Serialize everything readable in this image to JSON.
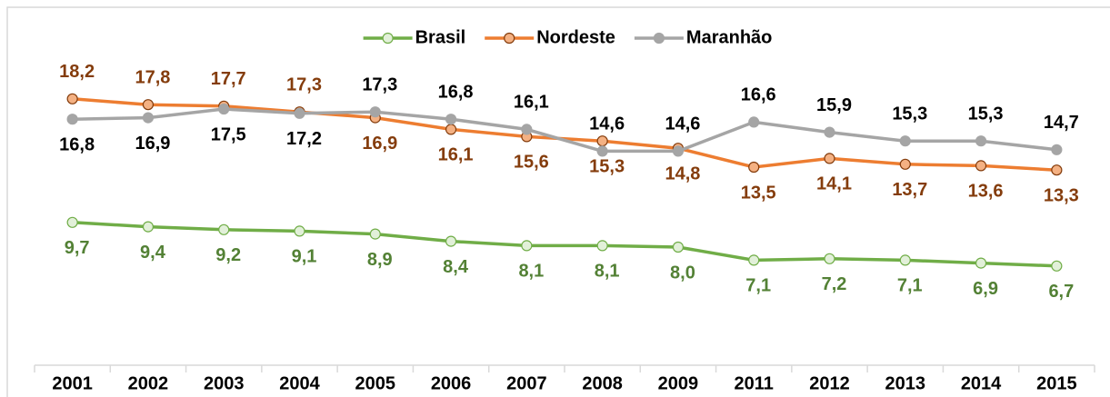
{
  "chart_data": {
    "type": "line",
    "categories": [
      "2001",
      "2002",
      "2003",
      "2004",
      "2005",
      "2006",
      "2007",
      "2008",
      "2009",
      "2011",
      "2012",
      "2013",
      "2014",
      "2015"
    ],
    "ylim": [
      0,
      25
    ],
    "legend": "top",
    "series": [
      {
        "name": "Brasil",
        "color": "#70ad47",
        "marker_fill": "#e2f0d9",
        "label_color": "#538135",
        "values": [
          9.7,
          9.4,
          9.2,
          9.1,
          8.9,
          8.4,
          8.1,
          8.1,
          8.0,
          7.1,
          7.2,
          7.1,
          6.9,
          6.7
        ],
        "value_labels": [
          "9,7",
          "9,4",
          "9,2",
          "9,1",
          "8,9",
          "8,4",
          "8,1",
          "8,1",
          "8,0",
          "7,1",
          "7,2",
          "7,1",
          "6,9",
          "6,7"
        ]
      },
      {
        "name": "Nordeste",
        "color": "#ed7d31",
        "marker_fill": "#f4b183",
        "label_color": "#843c0c",
        "values": [
          18.2,
          17.8,
          17.7,
          17.3,
          16.9,
          16.1,
          15.6,
          15.3,
          14.8,
          13.5,
          14.1,
          13.7,
          13.6,
          13.3
        ],
        "value_labels": [
          "18,2",
          "17,8",
          "17,7",
          "17,3",
          "16,9",
          "16,1",
          "15,6",
          "15,3",
          "14,8",
          "13,5",
          "14,1",
          "13,7",
          "13,6",
          "13,3"
        ]
      },
      {
        "name": "Maranhão",
        "color": "#a5a5a5",
        "marker_fill": "#a5a5a5",
        "label_color": "#000000",
        "values": [
          16.8,
          16.9,
          17.5,
          17.2,
          17.3,
          16.8,
          16.1,
          14.6,
          14.6,
          16.6,
          15.9,
          15.3,
          15.3,
          14.7
        ],
        "value_labels": [
          "16,8",
          "16,9",
          "17,5",
          "17,2",
          "17,3",
          "16,8",
          "16,1",
          "14,6",
          "14,6",
          "16,6",
          "15,9",
          "15,3",
          "15,3",
          "14,7"
        ]
      }
    ]
  }
}
